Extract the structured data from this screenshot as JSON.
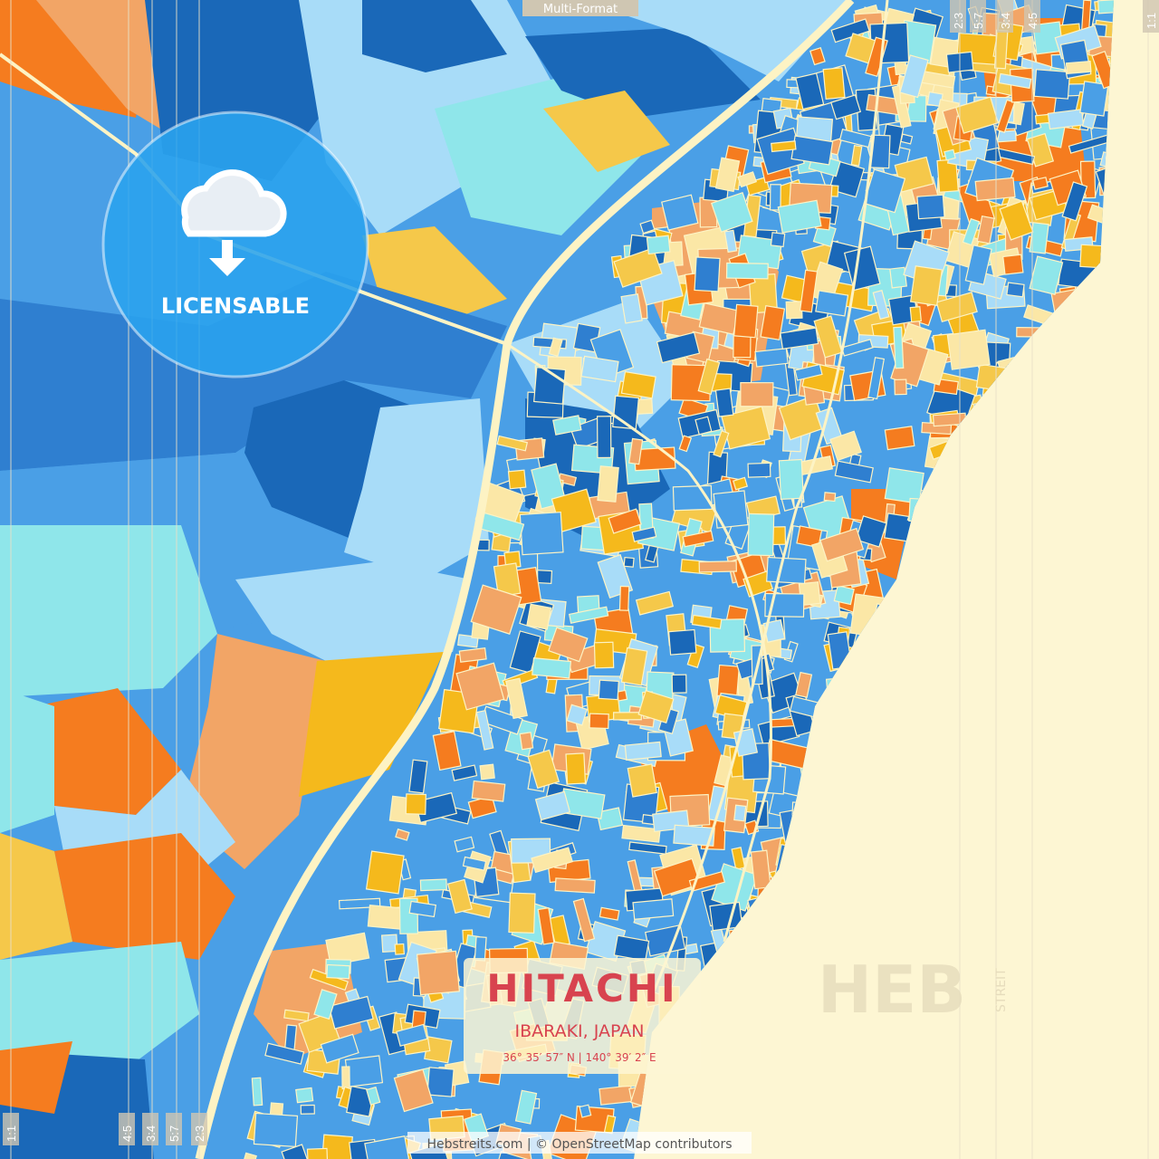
{
  "badge": {
    "format": "Multi-Format",
    "license": "LICENSABLE"
  },
  "ratios": {
    "top": [
      "2:3",
      "5:7",
      "3:4",
      "4:5",
      "1:1"
    ],
    "bottom": [
      "1:1",
      "4:5",
      "3:4",
      "5:7",
      "2:3"
    ]
  },
  "title": {
    "city": "HITACHI",
    "region": "IBARAKI, JAPAN",
    "coordinates": "36° 35′ 57″ N | 140° 39′ 2″ E"
  },
  "watermark": {
    "mark": "HEB",
    "side": "STREIT"
  },
  "credit": "Hebstreits.com | © OpenStreetMap contributors"
}
